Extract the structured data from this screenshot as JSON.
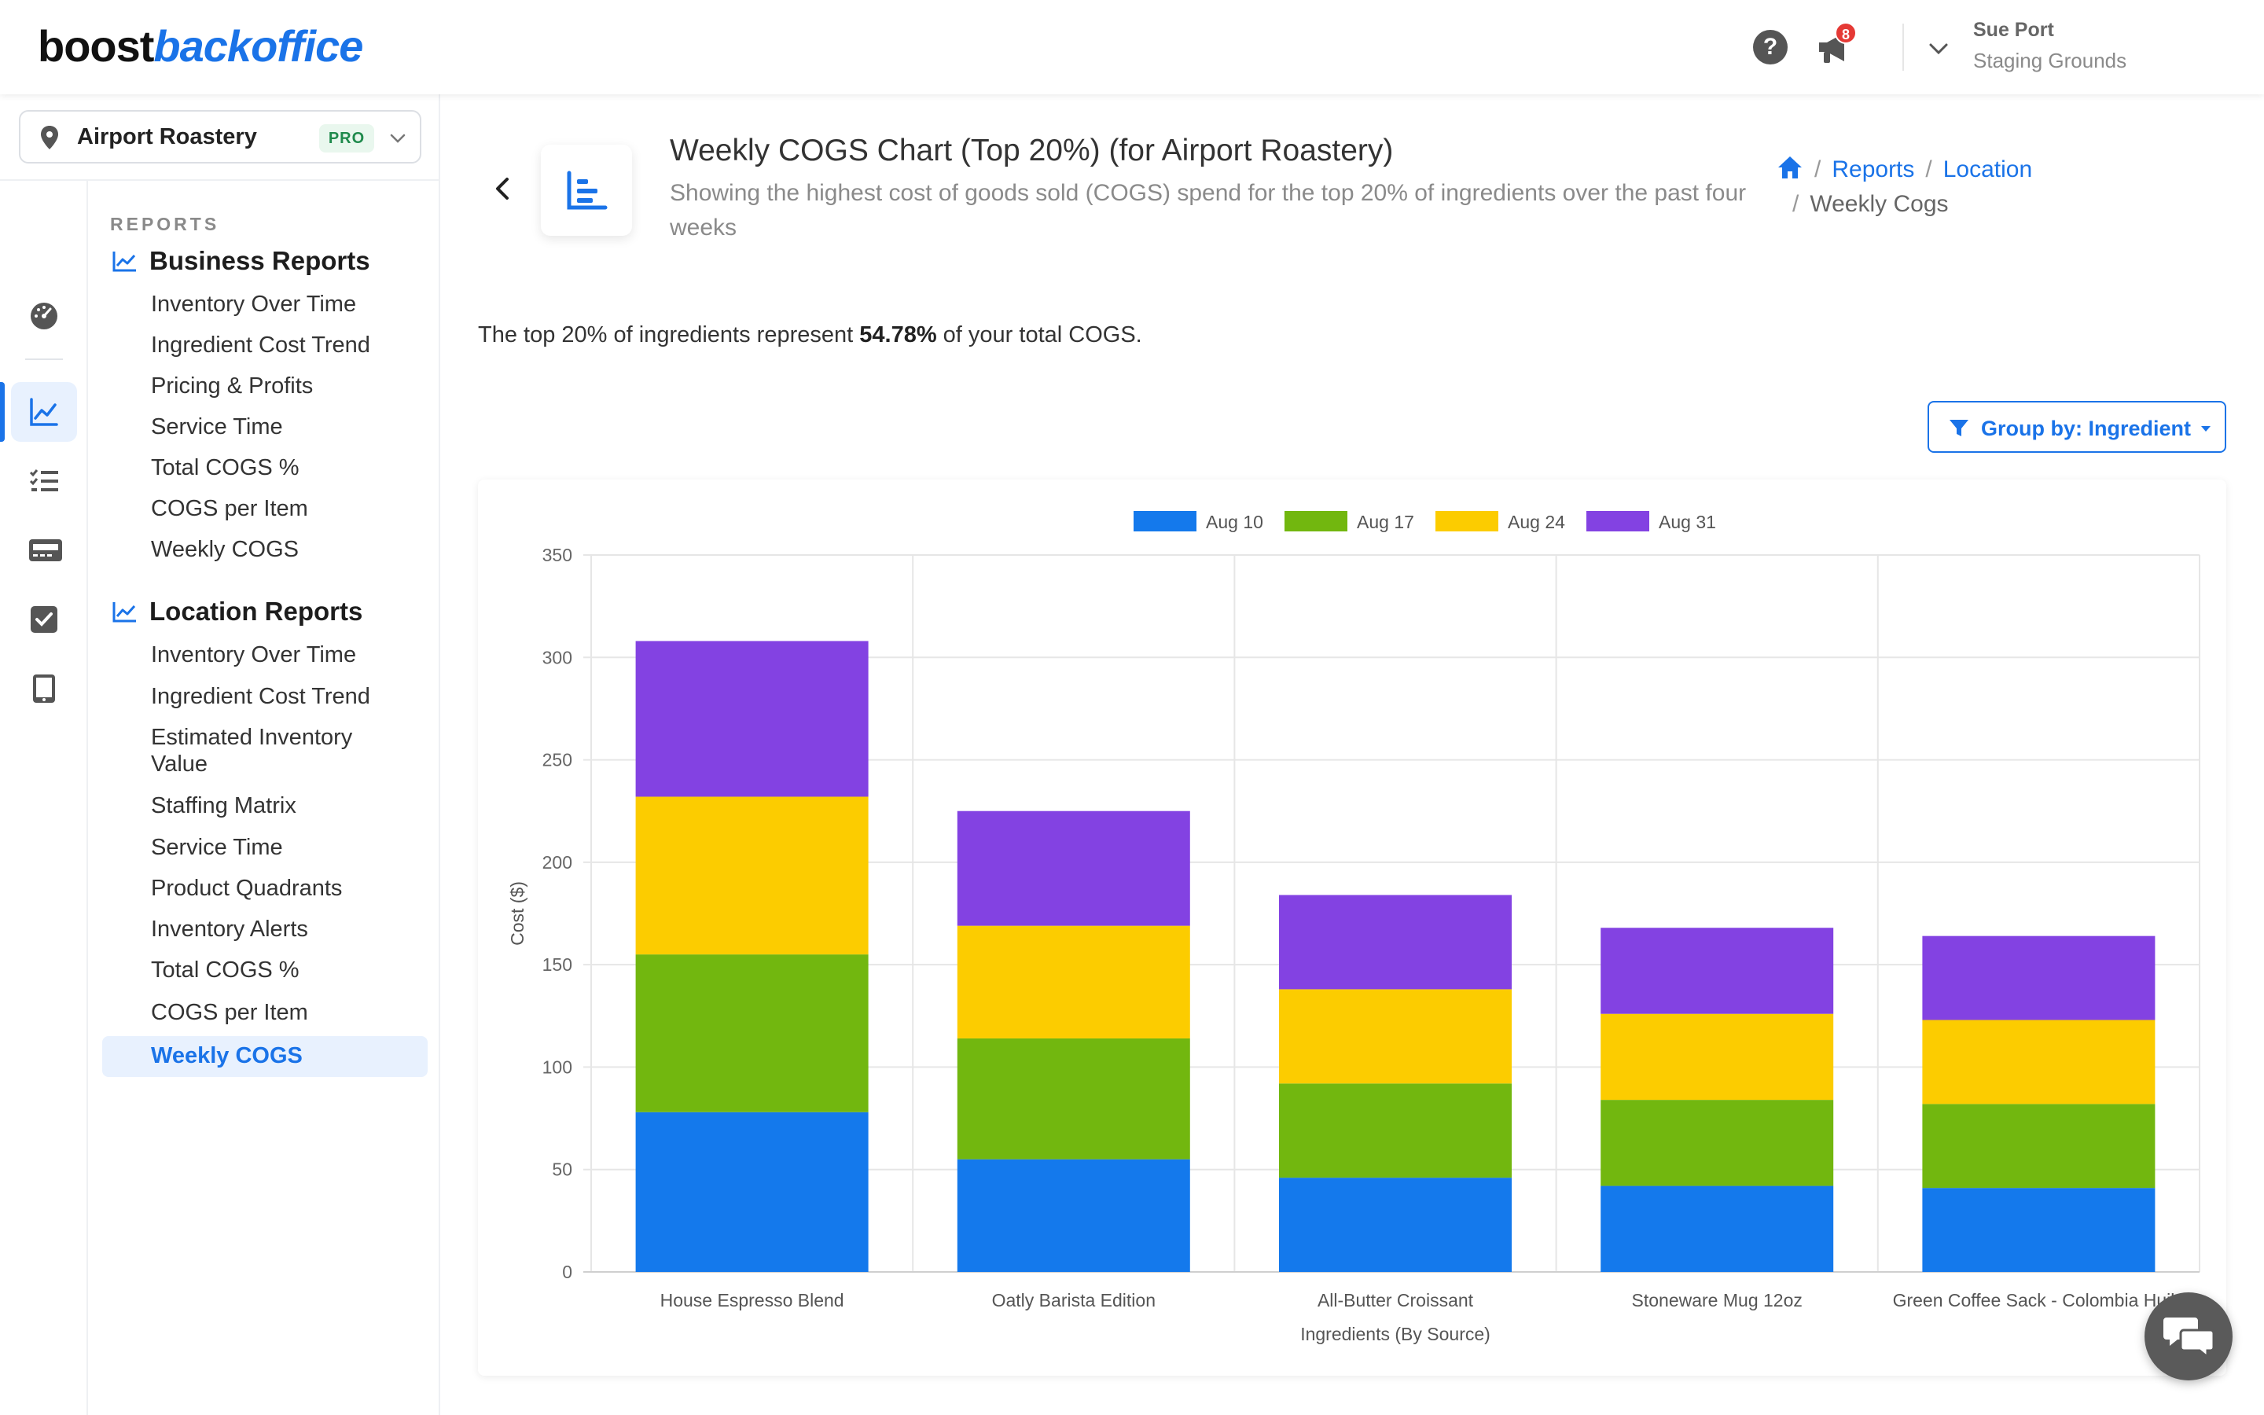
{
  "header": {
    "logo_main": "boost",
    "logo_accent": "backoffice",
    "notification_count": "8",
    "user_name": "Sue Port",
    "user_org": "Staging Grounds"
  },
  "sidebar": {
    "location_name": "Airport Roastery",
    "plan_badge": "PRO",
    "section_heading": "REPORTS",
    "business_title": "Business Reports",
    "business_items": [
      "Inventory Over Time",
      "Ingredient Cost Trend",
      "Pricing & Profits",
      "Service Time",
      "Total COGS %",
      "COGS per Item",
      "Weekly COGS"
    ],
    "location_title": "Location Reports",
    "location_items": [
      "Inventory Over Time",
      "Ingredient Cost Trend",
      "Estimated Inventory Value",
      "Staffing Matrix",
      "Service Time",
      "Product Quadrants",
      "Inventory Alerts",
      "Total COGS %",
      "COGS per Item",
      "Weekly COGS"
    ]
  },
  "page": {
    "title": "Weekly COGS Chart (Top 20%) (for Airport Roastery)",
    "subtitle": "Showing the highest cost of goods sold (COGS) spend for the top 20% of ingredients over the past four weeks",
    "breadcrumb": [
      "Reports",
      "Location",
      "Weekly Cogs"
    ],
    "summary_prefix": "The top 20% of ingredients represent",
    "summary_value": "54.78%",
    "summary_suffix": "of your total COGS.",
    "group_button": "Group by: Ingredient"
  },
  "colors": {
    "accent": "#1a73e8",
    "series": [
      "#1479ec",
      "#72b70f",
      "#fccc00",
      "#8342e2"
    ]
  },
  "chart_data": {
    "type": "bar",
    "stacked": true,
    "categories": [
      "House Espresso Blend",
      "Oatly Barista Edition",
      "All-Butter Croissant",
      "Stoneware Mug 12oz",
      "Green Coffee Sack - Colombia Huila"
    ],
    "series": [
      {
        "name": "Aug 10",
        "values": [
          78,
          55,
          46,
          42,
          41
        ]
      },
      {
        "name": "Aug 17",
        "values": [
          77,
          59,
          46,
          42,
          41
        ]
      },
      {
        "name": "Aug 24",
        "values": [
          77,
          55,
          46,
          42,
          41
        ]
      },
      {
        "name": "Aug 31",
        "values": [
          76,
          56,
          46,
          42,
          41
        ]
      }
    ],
    "xlabel": "Ingredients (By Source)",
    "ylabel": "Cost ($)",
    "ylim": [
      0,
      350
    ],
    "yticks": [
      0,
      50,
      100,
      150,
      200,
      250,
      300,
      350
    ],
    "grid": true,
    "legend": "top-center"
  }
}
